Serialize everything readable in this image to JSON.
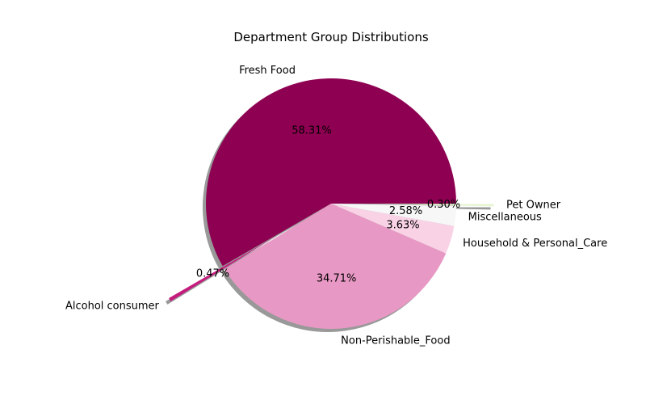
{
  "chart_data": {
    "type": "pie",
    "title": "Department Group Distributions",
    "start_angle_deg": 0,
    "direction": "counterclockwise",
    "shadow": true,
    "slices": [
      {
        "label": "Fresh Food",
        "value": 58.31,
        "pct_label": "58.31%",
        "color": "#8e0152",
        "explode": 0
      },
      {
        "label": "Alcohol consumer",
        "value": 0.47,
        "pct_label": "0.47%",
        "color": "#c51b7d",
        "explode": 0.5
      },
      {
        "label": "Non-Perishable_Food",
        "value": 34.71,
        "pct_label": "34.71%",
        "color": "#e898c4",
        "explode": 0
      },
      {
        "label": "Household & Personal_Care",
        "value": 3.63,
        "pct_label": "3.63%",
        "color": "#f9d2e6",
        "explode": 0
      },
      {
        "label": "Miscellaneous",
        "value": 2.58,
        "pct_label": "2.58%",
        "color": "#f7f7f7",
        "explode": 0
      },
      {
        "label": "Pet Owner",
        "value": 0.3,
        "pct_label": "0.30%",
        "color": "#e6f5d0",
        "explode": 0.3
      }
    ]
  }
}
